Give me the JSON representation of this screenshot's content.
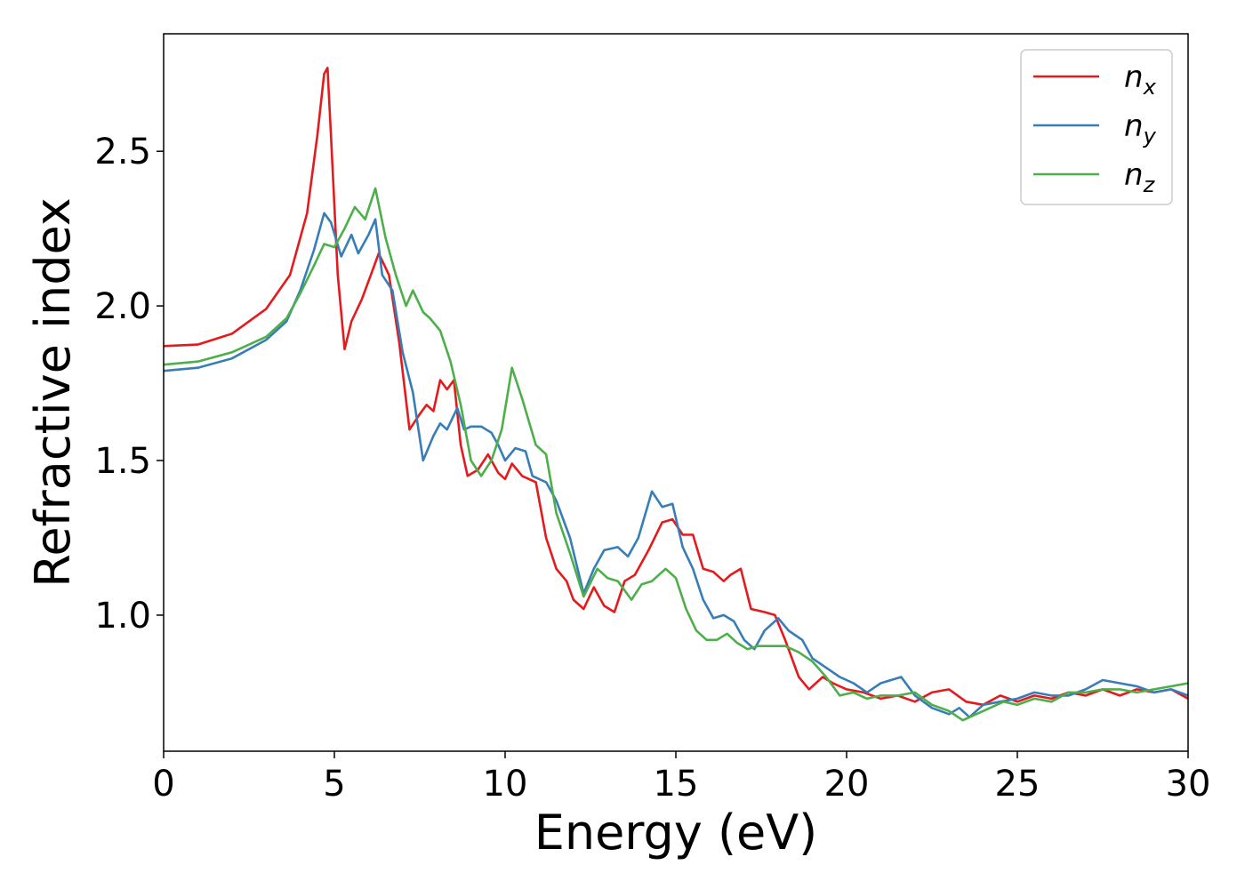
{
  "chart_data": {
    "type": "line",
    "xlabel": "Energy (eV)",
    "ylabel": "Refractive index",
    "xlim": [
      0,
      30
    ],
    "ylim": [
      0.56,
      2.88
    ],
    "xticks": [
      0,
      5,
      10,
      15,
      20,
      25,
      30
    ],
    "xtick_labels": [
      "0",
      "5",
      "10",
      "15",
      "20",
      "25",
      "30"
    ],
    "yticks": [
      1.0,
      1.5,
      2.0,
      2.5
    ],
    "ytick_labels": [
      "1.0",
      "1.5",
      "2.0",
      "2.5"
    ],
    "grid": false,
    "legend_position": "top-right",
    "series": [
      {
        "name": "n",
        "subscript": "x",
        "color": "#e41a1c",
        "points": [
          [
            0,
            1.87
          ],
          [
            1,
            1.875
          ],
          [
            2,
            1.91
          ],
          [
            3,
            1.99
          ],
          [
            3.7,
            2.1
          ],
          [
            4.2,
            2.3
          ],
          [
            4.5,
            2.55
          ],
          [
            4.7,
            2.75
          ],
          [
            4.8,
            2.77
          ],
          [
            4.9,
            2.55
          ],
          [
            5.1,
            2.1
          ],
          [
            5.3,
            1.86
          ],
          [
            5.5,
            1.95
          ],
          [
            5.8,
            2.02
          ],
          [
            6.0,
            2.08
          ],
          [
            6.3,
            2.17
          ],
          [
            6.6,
            2.1
          ],
          [
            6.9,
            1.88
          ],
          [
            7.2,
            1.6
          ],
          [
            7.5,
            1.65
          ],
          [
            7.7,
            1.68
          ],
          [
            7.9,
            1.66
          ],
          [
            8.1,
            1.76
          ],
          [
            8.3,
            1.73
          ],
          [
            8.5,
            1.76
          ],
          [
            8.7,
            1.55
          ],
          [
            8.9,
            1.45
          ],
          [
            9.2,
            1.47
          ],
          [
            9.5,
            1.52
          ],
          [
            9.8,
            1.46
          ],
          [
            10.0,
            1.44
          ],
          [
            10.2,
            1.49
          ],
          [
            10.5,
            1.45
          ],
          [
            10.9,
            1.43
          ],
          [
            11.2,
            1.25
          ],
          [
            11.5,
            1.15
          ],
          [
            11.8,
            1.11
          ],
          [
            12.0,
            1.05
          ],
          [
            12.3,
            1.02
          ],
          [
            12.6,
            1.09
          ],
          [
            12.9,
            1.03
          ],
          [
            13.2,
            1.01
          ],
          [
            13.5,
            1.11
          ],
          [
            13.8,
            1.13
          ],
          [
            14.2,
            1.21
          ],
          [
            14.6,
            1.3
          ],
          [
            14.9,
            1.31
          ],
          [
            15.2,
            1.26
          ],
          [
            15.5,
            1.26
          ],
          [
            15.8,
            1.15
          ],
          [
            16.1,
            1.14
          ],
          [
            16.4,
            1.11
          ],
          [
            16.6,
            1.13
          ],
          [
            16.9,
            1.15
          ],
          [
            17.2,
            1.02
          ],
          [
            17.6,
            1.01
          ],
          [
            17.9,
            1.0
          ],
          [
            18.2,
            0.92
          ],
          [
            18.6,
            0.8
          ],
          [
            18.9,
            0.76
          ],
          [
            19.3,
            0.8
          ],
          [
            19.6,
            0.78
          ],
          [
            20.0,
            0.76
          ],
          [
            20.5,
            0.75
          ],
          [
            21.0,
            0.73
          ],
          [
            21.5,
            0.74
          ],
          [
            22.0,
            0.72
          ],
          [
            22.5,
            0.75
          ],
          [
            23.0,
            0.76
          ],
          [
            23.5,
            0.72
          ],
          [
            24.0,
            0.71
          ],
          [
            24.5,
            0.74
          ],
          [
            25.0,
            0.72
          ],
          [
            25.5,
            0.74
          ],
          [
            26.0,
            0.73
          ],
          [
            26.5,
            0.75
          ],
          [
            27.0,
            0.74
          ],
          [
            27.5,
            0.76
          ],
          [
            28.0,
            0.74
          ],
          [
            28.5,
            0.76
          ],
          [
            29.0,
            0.75
          ],
          [
            29.5,
            0.76
          ],
          [
            30.0,
            0.73
          ]
        ]
      },
      {
        "name": "n",
        "subscript": "y",
        "color": "#377eb8",
        "points": [
          [
            0,
            1.79
          ],
          [
            1,
            1.8
          ],
          [
            2,
            1.83
          ],
          [
            3,
            1.89
          ],
          [
            3.6,
            1.95
          ],
          [
            4.0,
            2.05
          ],
          [
            4.4,
            2.18
          ],
          [
            4.7,
            2.3
          ],
          [
            4.9,
            2.27
          ],
          [
            5.2,
            2.16
          ],
          [
            5.5,
            2.23
          ],
          [
            5.7,
            2.17
          ],
          [
            6.0,
            2.23
          ],
          [
            6.2,
            2.28
          ],
          [
            6.4,
            2.1
          ],
          [
            6.7,
            2.05
          ],
          [
            7.0,
            1.85
          ],
          [
            7.3,
            1.72
          ],
          [
            7.6,
            1.5
          ],
          [
            7.9,
            1.58
          ],
          [
            8.1,
            1.62
          ],
          [
            8.3,
            1.6
          ],
          [
            8.6,
            1.67
          ],
          [
            8.8,
            1.6
          ],
          [
            9.0,
            1.61
          ],
          [
            9.3,
            1.61
          ],
          [
            9.6,
            1.59
          ],
          [
            9.8,
            1.55
          ],
          [
            10.0,
            1.5
          ],
          [
            10.3,
            1.54
          ],
          [
            10.6,
            1.53
          ],
          [
            10.8,
            1.45
          ],
          [
            11.2,
            1.43
          ],
          [
            11.5,
            1.37
          ],
          [
            11.9,
            1.25
          ],
          [
            12.3,
            1.07
          ],
          [
            12.6,
            1.15
          ],
          [
            12.9,
            1.21
          ],
          [
            13.3,
            1.22
          ],
          [
            13.6,
            1.19
          ],
          [
            13.9,
            1.25
          ],
          [
            14.3,
            1.4
          ],
          [
            14.6,
            1.35
          ],
          [
            14.9,
            1.36
          ],
          [
            15.2,
            1.22
          ],
          [
            15.5,
            1.15
          ],
          [
            15.8,
            1.05
          ],
          [
            16.1,
            0.99
          ],
          [
            16.4,
            1.0
          ],
          [
            16.7,
            0.98
          ],
          [
            17.0,
            0.92
          ],
          [
            17.3,
            0.89
          ],
          [
            17.6,
            0.95
          ],
          [
            18.0,
            0.99
          ],
          [
            18.3,
            0.95
          ],
          [
            18.7,
            0.92
          ],
          [
            19.0,
            0.86
          ],
          [
            19.4,
            0.83
          ],
          [
            19.8,
            0.8
          ],
          [
            20.2,
            0.78
          ],
          [
            20.6,
            0.75
          ],
          [
            21.0,
            0.78
          ],
          [
            21.6,
            0.8
          ],
          [
            22.0,
            0.74
          ],
          [
            22.5,
            0.7
          ],
          [
            23.0,
            0.68
          ],
          [
            23.3,
            0.7
          ],
          [
            23.6,
            0.67
          ],
          [
            24.0,
            0.71
          ],
          [
            24.5,
            0.72
          ],
          [
            25.0,
            0.73
          ],
          [
            25.5,
            0.75
          ],
          [
            26.0,
            0.74
          ],
          [
            26.5,
            0.74
          ],
          [
            27.0,
            0.76
          ],
          [
            27.5,
            0.79
          ],
          [
            28.0,
            0.78
          ],
          [
            28.5,
            0.77
          ],
          [
            29.0,
            0.75
          ],
          [
            29.5,
            0.76
          ],
          [
            30.0,
            0.74
          ]
        ]
      },
      {
        "name": "n",
        "subscript": "z",
        "color": "#4daf4a",
        "points": [
          [
            0,
            1.81
          ],
          [
            1,
            1.82
          ],
          [
            2,
            1.85
          ],
          [
            3,
            1.9
          ],
          [
            3.6,
            1.96
          ],
          [
            4.0,
            2.04
          ],
          [
            4.4,
            2.13
          ],
          [
            4.7,
            2.2
          ],
          [
            5.0,
            2.19
          ],
          [
            5.3,
            2.25
          ],
          [
            5.6,
            2.32
          ],
          [
            5.9,
            2.28
          ],
          [
            6.2,
            2.38
          ],
          [
            6.5,
            2.22
          ],
          [
            6.8,
            2.1
          ],
          [
            7.1,
            2.0
          ],
          [
            7.3,
            2.05
          ],
          [
            7.6,
            1.98
          ],
          [
            7.8,
            1.96
          ],
          [
            8.1,
            1.92
          ],
          [
            8.4,
            1.82
          ],
          [
            8.7,
            1.68
          ],
          [
            9.0,
            1.5
          ],
          [
            9.3,
            1.45
          ],
          [
            9.6,
            1.5
          ],
          [
            9.9,
            1.6
          ],
          [
            10.2,
            1.8
          ],
          [
            10.5,
            1.7
          ],
          [
            10.9,
            1.55
          ],
          [
            11.2,
            1.52
          ],
          [
            11.5,
            1.33
          ],
          [
            11.9,
            1.2
          ],
          [
            12.3,
            1.06
          ],
          [
            12.7,
            1.15
          ],
          [
            13.0,
            1.12
          ],
          [
            13.3,
            1.11
          ],
          [
            13.7,
            1.05
          ],
          [
            14.0,
            1.1
          ],
          [
            14.3,
            1.11
          ],
          [
            14.7,
            1.15
          ],
          [
            15.0,
            1.12
          ],
          [
            15.3,
            1.02
          ],
          [
            15.6,
            0.95
          ],
          [
            15.9,
            0.92
          ],
          [
            16.2,
            0.92
          ],
          [
            16.5,
            0.94
          ],
          [
            16.8,
            0.91
          ],
          [
            17.1,
            0.89
          ],
          [
            17.4,
            0.9
          ],
          [
            17.8,
            0.9
          ],
          [
            18.2,
            0.9
          ],
          [
            18.6,
            0.88
          ],
          [
            19.0,
            0.85
          ],
          [
            19.4,
            0.8
          ],
          [
            19.8,
            0.74
          ],
          [
            20.2,
            0.75
          ],
          [
            20.6,
            0.73
          ],
          [
            21.0,
            0.74
          ],
          [
            21.5,
            0.74
          ],
          [
            22.0,
            0.75
          ],
          [
            22.5,
            0.71
          ],
          [
            23.0,
            0.69
          ],
          [
            23.4,
            0.66
          ],
          [
            23.8,
            0.68
          ],
          [
            24.2,
            0.7
          ],
          [
            24.6,
            0.72
          ],
          [
            25.0,
            0.71
          ],
          [
            25.5,
            0.73
          ],
          [
            26.0,
            0.72
          ],
          [
            26.5,
            0.75
          ],
          [
            27.0,
            0.75
          ],
          [
            27.5,
            0.76
          ],
          [
            28.0,
            0.76
          ],
          [
            28.5,
            0.75
          ],
          [
            29.0,
            0.76
          ],
          [
            29.5,
            0.77
          ],
          [
            30.0,
            0.78
          ]
        ]
      }
    ]
  }
}
